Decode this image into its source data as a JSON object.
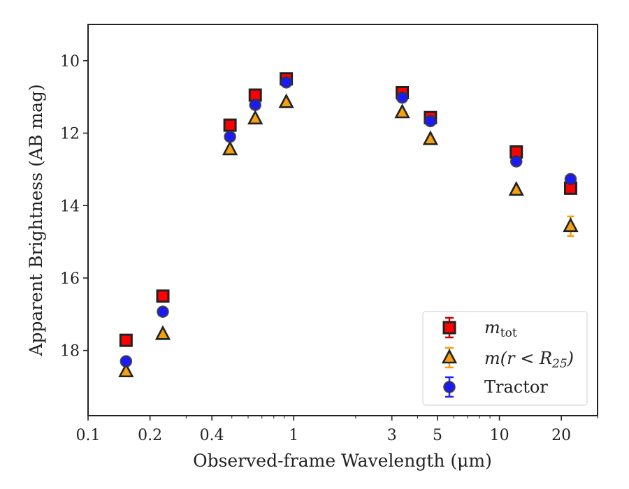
{
  "chart_data": {
    "type": "scatter",
    "xlabel": "Observed-frame Wavelength (μm)",
    "ylabel": "Apparent Brightness (AB mag)",
    "x_scale": "log",
    "xlim": [
      0.1,
      30
    ],
    "ylim": [
      19.8,
      9.0
    ],
    "y_inverted": true,
    "x_ticks": [
      0.1,
      0.2,
      0.4,
      1,
      3,
      5,
      10,
      20
    ],
    "x_tick_labels": [
      "0.1",
      "0.2",
      "0.4",
      "1",
      "3",
      "5",
      "10",
      "20"
    ],
    "y_ticks": [
      10,
      12,
      14,
      16,
      18
    ],
    "y_tick_labels": [
      "10",
      "12",
      "14",
      "16",
      "18"
    ],
    "grid": false,
    "legend_position": "lower-right",
    "series": [
      {
        "key": "mtot",
        "name": "m_tot",
        "marker": "square",
        "color": "#ff0000",
        "edge": "#222222",
        "errcolor": "#cc0000",
        "x": [
          0.153,
          0.231,
          0.49,
          0.65,
          0.92,
          3.37,
          4.62,
          12.08,
          22.19
        ],
        "y": [
          17.72,
          16.5,
          11.78,
          10.95,
          10.5,
          10.88,
          11.57,
          12.52,
          13.52
        ],
        "err": [
          0.05,
          0.05,
          0.03,
          0.03,
          0.03,
          0.03,
          0.03,
          0.04,
          0.06
        ]
      },
      {
        "key": "mr25",
        "name": "m(r < R25)",
        "marker": "triangle",
        "color": "#f5a00e",
        "edge": "#222222",
        "errcolor": "#f5a00e",
        "x": [
          0.153,
          0.231,
          0.49,
          0.65,
          0.92,
          3.37,
          4.62,
          12.08,
          22.19
        ],
        "y": [
          18.58,
          17.55,
          12.45,
          11.6,
          11.15,
          11.43,
          12.17,
          13.57,
          14.57
        ],
        "err": [
          0.04,
          0.04,
          0.03,
          0.03,
          0.03,
          0.03,
          0.04,
          0.06,
          0.27
        ]
      },
      {
        "key": "tractor",
        "name": "Tractor",
        "marker": "circle",
        "color": "#1a1aff",
        "edge": "#333344",
        "errcolor": "#2222ff",
        "x": [
          0.153,
          0.231,
          0.49,
          0.65,
          0.92,
          3.37,
          4.62,
          12.08,
          22.19
        ],
        "y": [
          18.3,
          16.93,
          12.1,
          11.22,
          10.6,
          11.02,
          11.67,
          12.78,
          13.27
        ],
        "err": [
          0.04,
          0.04,
          0.03,
          0.03,
          0.03,
          0.03,
          0.03,
          0.04,
          0.05
        ]
      }
    ]
  },
  "legend": {
    "mtot_main": "m",
    "mtot_sub": "tot",
    "mr25_main": "m(r < R",
    "mr25_sub": "25",
    "mr25_close": ")",
    "tractor": "Tractor"
  }
}
